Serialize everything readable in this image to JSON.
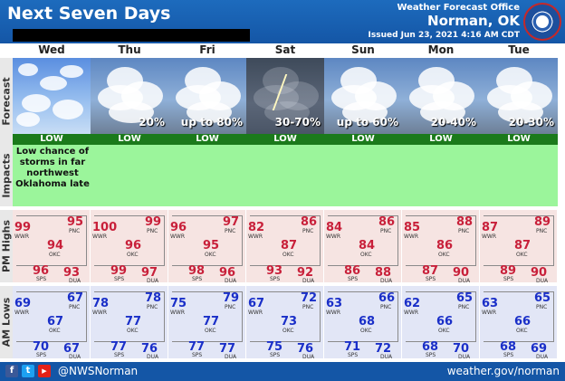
{
  "header": {
    "title": "Next Seven Days",
    "office": "Weather Forecast Office",
    "city": "Norman, OK",
    "issued": "Issued Jun 23, 2021 4:16 AM CDT"
  },
  "row_labels": {
    "forecast": "Forecast",
    "impacts": "Impacts",
    "highs": "PM Highs",
    "lows": "AM Lows"
  },
  "days": [
    {
      "name": "Wed",
      "sky": "clear",
      "precip": "",
      "risk": "LOW",
      "high": {
        "wwr": "99",
        "pnc": "95",
        "okc": "94",
        "sps": "96",
        "dua": "93"
      },
      "low": {
        "wwr": "69",
        "pnc": "67",
        "okc": "67",
        "sps": "70",
        "dua": "67"
      }
    },
    {
      "name": "Thu",
      "sky": "storm",
      "precip": "20%",
      "risk": "LOW",
      "high": {
        "wwr": "100",
        "pnc": "99",
        "okc": "96",
        "sps": "99",
        "dua": "97"
      },
      "low": {
        "wwr": "78",
        "pnc": "78",
        "okc": "77",
        "sps": "77",
        "dua": "76"
      }
    },
    {
      "name": "Fri",
      "sky": "storm",
      "precip": "up to 80%",
      "risk": "LOW",
      "high": {
        "wwr": "96",
        "pnc": "97",
        "okc": "95",
        "sps": "98",
        "dua": "96"
      },
      "low": {
        "wwr": "75",
        "pnc": "79",
        "okc": "77",
        "sps": "77",
        "dua": "77"
      }
    },
    {
      "name": "Sat",
      "sky": "dark",
      "precip": "30-70%",
      "risk": "LOW",
      "high": {
        "wwr": "82",
        "pnc": "86",
        "okc": "87",
        "sps": "93",
        "dua": "92"
      },
      "low": {
        "wwr": "67",
        "pnc": "72",
        "okc": "73",
        "sps": "75",
        "dua": "76"
      }
    },
    {
      "name": "Sun",
      "sky": "storm",
      "precip": "up to 60%",
      "risk": "LOW",
      "high": {
        "wwr": "84",
        "pnc": "86",
        "okc": "84",
        "sps": "86",
        "dua": "88"
      },
      "low": {
        "wwr": "63",
        "pnc": "66",
        "okc": "68",
        "sps": "71",
        "dua": "72"
      }
    },
    {
      "name": "Mon",
      "sky": "storm",
      "precip": "20-40%",
      "risk": "LOW",
      "high": {
        "wwr": "85",
        "pnc": "88",
        "okc": "86",
        "sps": "87",
        "dua": "90"
      },
      "low": {
        "wwr": "62",
        "pnc": "65",
        "okc": "66",
        "sps": "68",
        "dua": "70"
      }
    },
    {
      "name": "Tue",
      "sky": "storm",
      "precip": "20-30%",
      "risk": "LOW",
      "high": {
        "wwr": "87",
        "pnc": "89",
        "okc": "87",
        "sps": "89",
        "dua": "90"
      },
      "low": {
        "wwr": "63",
        "pnc": "65",
        "okc": "66",
        "sps": "68",
        "dua": "69"
      }
    }
  ],
  "impact_note": "Low chance of storms in far northwest Oklahoma late",
  "station_labels": {
    "wwr": "WWR",
    "pnc": "PNC",
    "okc": "OKC",
    "sps": "SPS",
    "dua": "DUA"
  },
  "footer": {
    "facebook": "f",
    "twitter": "t",
    "youtube": "▶",
    "handle": "@NWSNorman",
    "website": "weather.gov/norman"
  },
  "colors": {
    "header_blue": "#1456a6",
    "risk_green": "#1b7a1b",
    "impact_green": "#9bf59b",
    "high_red": "#c8203a",
    "low_blue": "#1a2fc8"
  },
  "icons": [
    "facebook-icon",
    "twitter-icon",
    "youtube-icon",
    "noaa-seal-icon"
  ]
}
